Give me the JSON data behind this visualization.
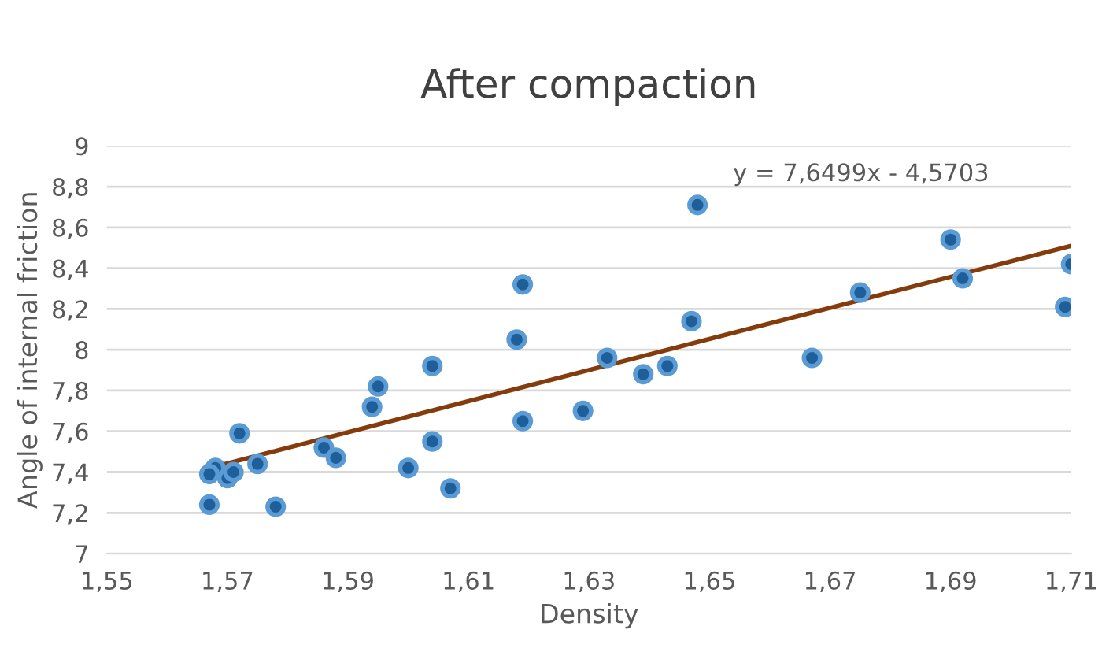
{
  "chart_data": {
    "type": "scatter",
    "title": "After compaction",
    "xlabel": "Density",
    "ylabel": "Angle of internal friction",
    "xlim": [
      1.55,
      1.71
    ],
    "ylim": [
      7,
      9
    ],
    "xticks": [
      {
        "value": 1.55,
        "label": "1,55"
      },
      {
        "value": 1.57,
        "label": "1,57"
      },
      {
        "value": 1.59,
        "label": "1,59"
      },
      {
        "value": 1.61,
        "label": "1,61"
      },
      {
        "value": 1.63,
        "label": "1,63"
      },
      {
        "value": 1.65,
        "label": "1,65"
      },
      {
        "value": 1.67,
        "label": "1,67"
      },
      {
        "value": 1.69,
        "label": "1,69"
      },
      {
        "value": 1.71,
        "label": "1,71"
      }
    ],
    "yticks": [
      7,
      {
        "value": 7.2,
        "label": "7,2"
      },
      {
        "value": 7.4,
        "label": "7,4"
      },
      {
        "value": 7.6,
        "label": "7,6"
      },
      {
        "value": 7.8,
        "label": "7,8"
      },
      8,
      {
        "value": 8.2,
        "label": "8,2"
      },
      {
        "value": 8.4,
        "label": "8,4"
      },
      {
        "value": 8.6,
        "label": "8,6"
      },
      {
        "value": 8.8,
        "label": "8,8"
      },
      9
    ],
    "grid": "y",
    "legend": false,
    "annotations": [
      "y = 7,6499x - 4,5703"
    ],
    "series": [
      {
        "color": "#1f5f99",
        "marker": "circle",
        "x": [
          1.568,
          1.567,
          1.567,
          1.57,
          1.571,
          1.572,
          1.575,
          1.578,
          1.586,
          1.588,
          1.594,
          1.595,
          1.6,
          1.604,
          1.604,
          1.607,
          1.618,
          1.619,
          1.619,
          1.629,
          1.633,
          1.639,
          1.643,
          1.647,
          1.648,
          1.667,
          1.675,
          1.69,
          1.692,
          1.709,
          1.71
        ],
        "values": [
          7.42,
          7.39,
          7.24,
          7.37,
          7.4,
          7.59,
          7.44,
          7.23,
          7.52,
          7.47,
          7.72,
          7.82,
          7.42,
          7.55,
          7.92,
          7.32,
          8.05,
          8.32,
          7.65,
          7.7,
          7.96,
          7.88,
          7.92,
          8.14,
          8.71,
          7.96,
          8.28,
          8.54,
          8.35,
          8.21,
          8.42
        ]
      },
      {
        "type": "line",
        "marker": "none",
        "color": "#843c0c",
        "x": [
          1.567,
          1.71
        ],
        "values": [
          7.42,
          8.51
        ]
      }
    ]
  }
}
